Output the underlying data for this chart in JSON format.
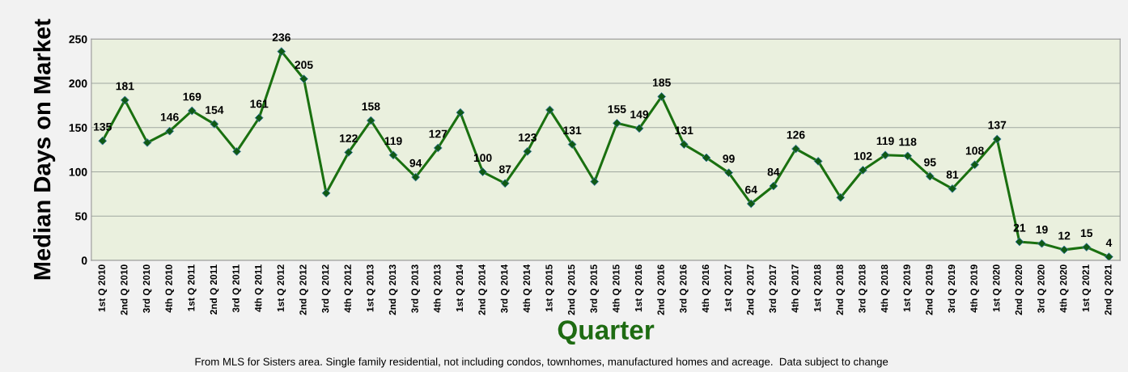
{
  "chart_data": {
    "type": "line",
    "ylabel": "Median Days on Market",
    "xlabel": "Quarter",
    "categories": [
      "1st Q 2010",
      "2nd Q 2010",
      "3rd Q 2010",
      "4th Q 2010",
      "1st Q 2011",
      "2nd Q 2011",
      "3rd Q 2011",
      "4th Q 2011",
      "1st Q 2012",
      "2nd Q 2012",
      "3rd Q 2012",
      "4th Q 2012",
      "1st Q 2013",
      "2nd Q 2013",
      "3rd Q 2013",
      "4th Q 2013",
      "1st Q 2014",
      "2nd Q 2014",
      "3rd Q 2014",
      "4th Q 2014",
      "1st Q 2015",
      "2nd Q 2015",
      "3rd Q 2015",
      "4th Q 2015",
      "1st Q 2016",
      "2nd Q 2016",
      "3rd Q 2016",
      "4th Q 2016",
      "1st Q 2017",
      "2nd Q 2017",
      "3rd Q 2017",
      "4th Q 2017",
      "1st Q 2018",
      "2nd Q 2018",
      "3rd Q 2018",
      "4th Q 2018",
      "1st Q 2019",
      "2nd Q 2019",
      "3rd Q 2019",
      "4th Q 2019",
      "1st Q 2020",
      "2nd Q 2020",
      "3rd Q 2020",
      "4th Q 2020",
      "1st Q 2021",
      "2nd Q 2021"
    ],
    "values": [
      135,
      181,
      133,
      146,
      169,
      154,
      123,
      161,
      236,
      205,
      76,
      122,
      158,
      119,
      94,
      127,
      167,
      100,
      87,
      123,
      170,
      131,
      89,
      155,
      149,
      185,
      131,
      116,
      99,
      64,
      84,
      126,
      112,
      71,
      102,
      119,
      118,
      95,
      81,
      108,
      137,
      21,
      19,
      12,
      15,
      4
    ],
    "value_labels": [
      "135",
      "181",
      null,
      "146",
      "169",
      "154",
      null,
      "161",
      "236",
      "205",
      null,
      "122",
      "158",
      "119",
      "94",
      "127",
      null,
      "100",
      "87",
      "123",
      null,
      "131",
      null,
      "155",
      "149",
      "185",
      "131",
      null,
      "99",
      "64",
      "84",
      "126",
      null,
      null,
      "102",
      "119",
      "118",
      "95",
      "81",
      "108",
      "137",
      "21",
      "19",
      "12",
      "15",
      "4"
    ],
    "color": "#1a7010",
    "marker": "diamond",
    "line_style": "solid",
    "grid": "y",
    "legend": false,
    "ylim": [
      0,
      250
    ],
    "yticks": [
      0,
      50,
      100,
      150,
      200,
      250
    ],
    "annotations": [
      "From MLS for Sisters area. Single family residential, not including condos, townhomes, manufactured homes and acreage.  Data subject to change"
    ]
  }
}
